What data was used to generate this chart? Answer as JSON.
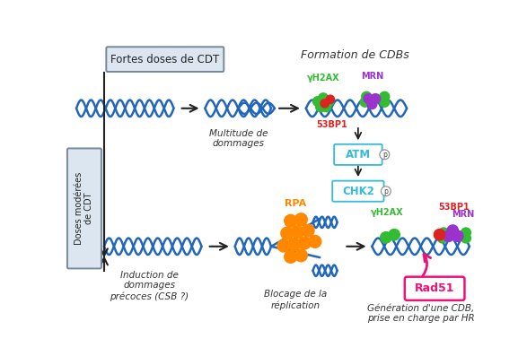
{
  "bg_color": "#ffffff",
  "top_box_label": "Fortes doses de CDT",
  "left_box_label": "Doses modérées\nde CDT",
  "formation_label": "Formation de CDBs",
  "text_multitude": "Multitude de\ndommages",
  "text_induction": "Induction de\ndommages\nprécoces (CSB ?)",
  "text_blocage": "Blocage de la\nréplication",
  "text_generation": "Génération d'une CDB,\nprise en charge par HR",
  "dna_color": "#2266bb",
  "arrow_color": "#222222",
  "atm_color": "#33bbdd",
  "chk2_color": "#33bbdd",
  "rad51_color": "#ee1177",
  "green_color": "#33bb33",
  "purple_color": "#9933cc",
  "red_color": "#dd2222",
  "orange_color": "#ff8800",
  "box_edge": "#778899",
  "box_face": "#dce6f0"
}
